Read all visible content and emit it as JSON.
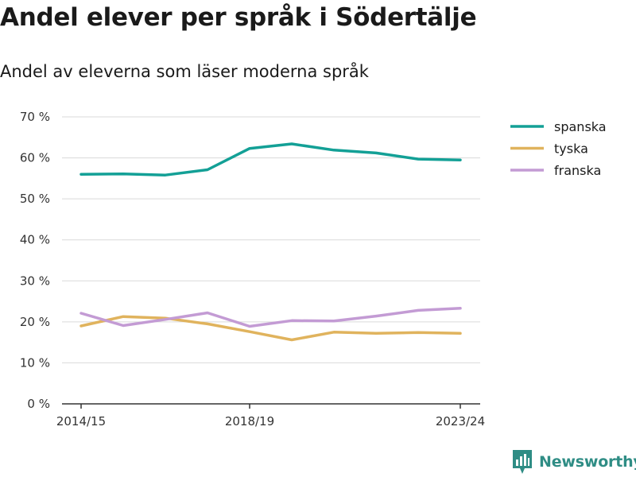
{
  "title": "Andel elever per språk i Södertälje",
  "subtitle": "Andel av eleverna som läser moderna språk",
  "brand": {
    "name": "Newsworthy",
    "color": "#2f8d85"
  },
  "chart_data": {
    "type": "line",
    "x": [
      "2014/15",
      "2015/16",
      "2016/17",
      "2017/18",
      "2018/19",
      "2019/20",
      "2020/21",
      "2021/22",
      "2022/23",
      "2023/24"
    ],
    "x_tick_labels": [
      "2014/15",
      "2018/19",
      "2023/24"
    ],
    "y_ticks": [
      0,
      10,
      20,
      30,
      40,
      50,
      60,
      70
    ],
    "y_tick_labels": [
      "0 %",
      "10 %",
      "20 %",
      "30 %",
      "40 %",
      "50 %",
      "60 %",
      "70 %"
    ],
    "ylim": [
      0,
      70
    ],
    "grid": true,
    "legend_position": "top-right",
    "series": [
      {
        "name": "spanska",
        "color": "#13a096",
        "values": [
          56.0,
          56.1,
          55.8,
          57.1,
          62.3,
          63.4,
          61.9,
          61.2,
          59.7,
          59.5
        ]
      },
      {
        "name": "tyska",
        "color": "#e0b35d",
        "values": [
          19.0,
          21.3,
          20.9,
          19.5,
          17.6,
          15.6,
          17.5,
          17.2,
          17.4,
          17.2
        ]
      },
      {
        "name": "franska",
        "color": "#c39bd4",
        "values": [
          22.1,
          19.1,
          20.6,
          22.2,
          18.9,
          20.3,
          20.2,
          21.4,
          22.8,
          23.3
        ]
      }
    ]
  }
}
